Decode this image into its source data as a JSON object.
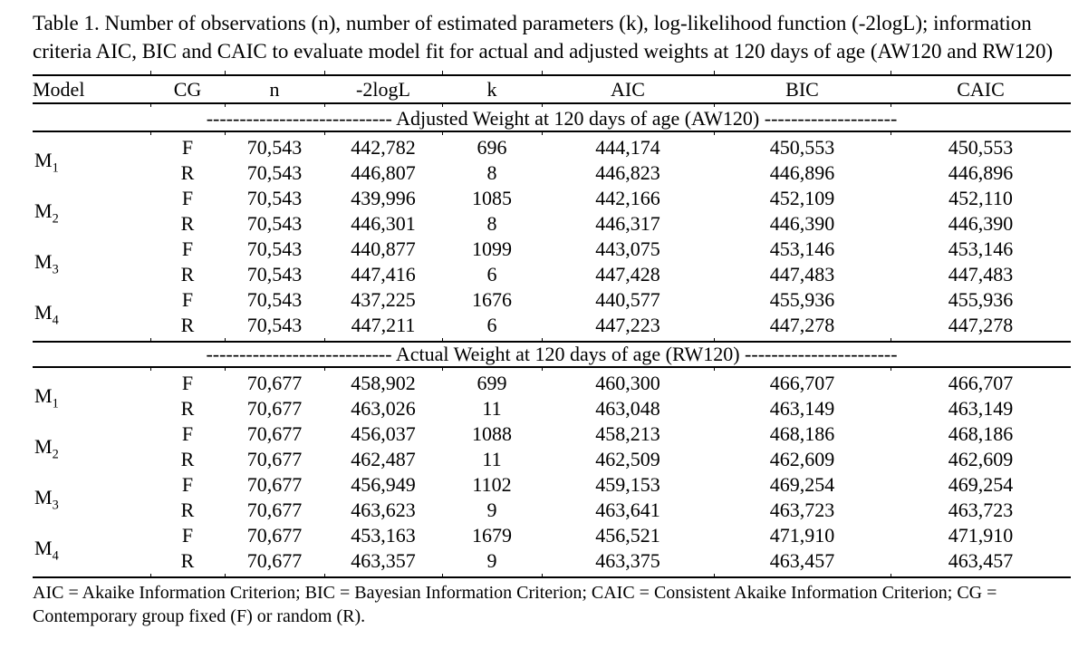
{
  "page": {
    "title": "Table 1. Number of observations (n), number of estimated parameters (k), log-likelihood function (-2logL); information criteria AIC, BIC and CAIC to evaluate model fit for actual and adjusted weights at 120 days of age (AW120 and RW120)",
    "footnote": "AIC = Akaike Information Criterion; BIC = Bayesian Information Criterion; CAIC = Consistent Akaike Information Criterion; CG = Contemporary group fixed (F) or random (R).",
    "text_color": "#000000",
    "background_color": "#ffffff"
  },
  "table": {
    "columns": [
      "Model",
      "CG",
      "n",
      "-2logL",
      "k",
      "AIC",
      "BIC",
      "CAIC"
    ],
    "sections": [
      {
        "dashes_left": "----------------------------",
        "label": "Adjusted Weight at 120 days of age (AW120)",
        "dashes_right": "--------------------",
        "groups": [
          {
            "model_base": "M",
            "model_sub": "1",
            "rows": [
              {
                "cg": "F",
                "n": "70,543",
                "logl": "442,782",
                "k": "696",
                "aic": "444,174",
                "bic": "450,553",
                "caic": "450,553"
              },
              {
                "cg": "R",
                "n": "70,543",
                "logl": "446,807",
                "k": "8",
                "aic": "446,823",
                "bic": "446,896",
                "caic": "446,896"
              }
            ]
          },
          {
            "model_base": "M",
            "model_sub": "2",
            "rows": [
              {
                "cg": "F",
                "n": "70,543",
                "logl": "439,996",
                "k": "1085",
                "aic": "442,166",
                "bic": "452,109",
                "caic": "452,110"
              },
              {
                "cg": "R",
                "n": "70,543",
                "logl": "446,301",
                "k": "8",
                "aic": "446,317",
                "bic": "446,390",
                "caic": "446,390"
              }
            ]
          },
          {
            "model_base": "M",
            "model_sub": "3",
            "rows": [
              {
                "cg": "F",
                "n": "70,543",
                "logl": "440,877",
                "k": "1099",
                "aic": "443,075",
                "bic": "453,146",
                "caic": "453,146"
              },
              {
                "cg": "R",
                "n": "70,543",
                "logl": "447,416",
                "k": "6",
                "aic": "447,428",
                "bic": "447,483",
                "caic": "447,483"
              }
            ]
          },
          {
            "model_base": "M",
            "model_sub": "4",
            "rows": [
              {
                "cg": "F",
                "n": "70,543",
                "logl": "437,225",
                "k": "1676",
                "aic": "440,577",
                "bic": "455,936",
                "caic": "455,936"
              },
              {
                "cg": "R",
                "n": "70,543",
                "logl": "447,211",
                "k": "6",
                "aic": "447,223",
                "bic": "447,278",
                "caic": "447,278"
              }
            ]
          }
        ]
      },
      {
        "dashes_left": "----------------------------",
        "label": "Actual Weight at 120 days of age (RW120)",
        "dashes_right": "-----------------------",
        "groups": [
          {
            "model_base": "M",
            "model_sub": "1",
            "rows": [
              {
                "cg": "F",
                "n": "70,677",
                "logl": "458,902",
                "k": "699",
                "aic": "460,300",
                "bic": "466,707",
                "caic": "466,707"
              },
              {
                "cg": "R",
                "n": "70,677",
                "logl": "463,026",
                "k": "11",
                "aic": "463,048",
                "bic": "463,149",
                "caic": "463,149"
              }
            ]
          },
          {
            "model_base": "M",
            "model_sub": "2",
            "rows": [
              {
                "cg": "F",
                "n": "70,677",
                "logl": "456,037",
                "k": "1088",
                "aic": "458,213",
                "bic": "468,186",
                "caic": "468,186"
              },
              {
                "cg": "R",
                "n": "70,677",
                "logl": "462,487",
                "k": "11",
                "aic": "462,509",
                "bic": "462,609",
                "caic": "462,609"
              }
            ]
          },
          {
            "model_base": "M",
            "model_sub": "3",
            "rows": [
              {
                "cg": "F",
                "n": "70,677",
                "logl": "456,949",
                "k": "1102",
                "aic": "459,153",
                "bic": "469,254",
                "caic": "469,254"
              },
              {
                "cg": "R",
                "n": "70,677",
                "logl": "463,623",
                "k": "9",
                "aic": "463,641",
                "bic": "463,723",
                "caic": "463,723"
              }
            ]
          },
          {
            "model_base": "M",
            "model_sub": "4",
            "rows": [
              {
                "cg": "F",
                "n": "70,677",
                "logl": "453,163",
                "k": "1679",
                "aic": "456,521",
                "bic": "471,910",
                "caic": "471,910"
              },
              {
                "cg": "R",
                "n": "70,677",
                "logl": "463,357",
                "k": "9",
                "aic": "463,375",
                "bic": "463,457",
                "caic": "463,457"
              }
            ]
          }
        ]
      }
    ]
  }
}
